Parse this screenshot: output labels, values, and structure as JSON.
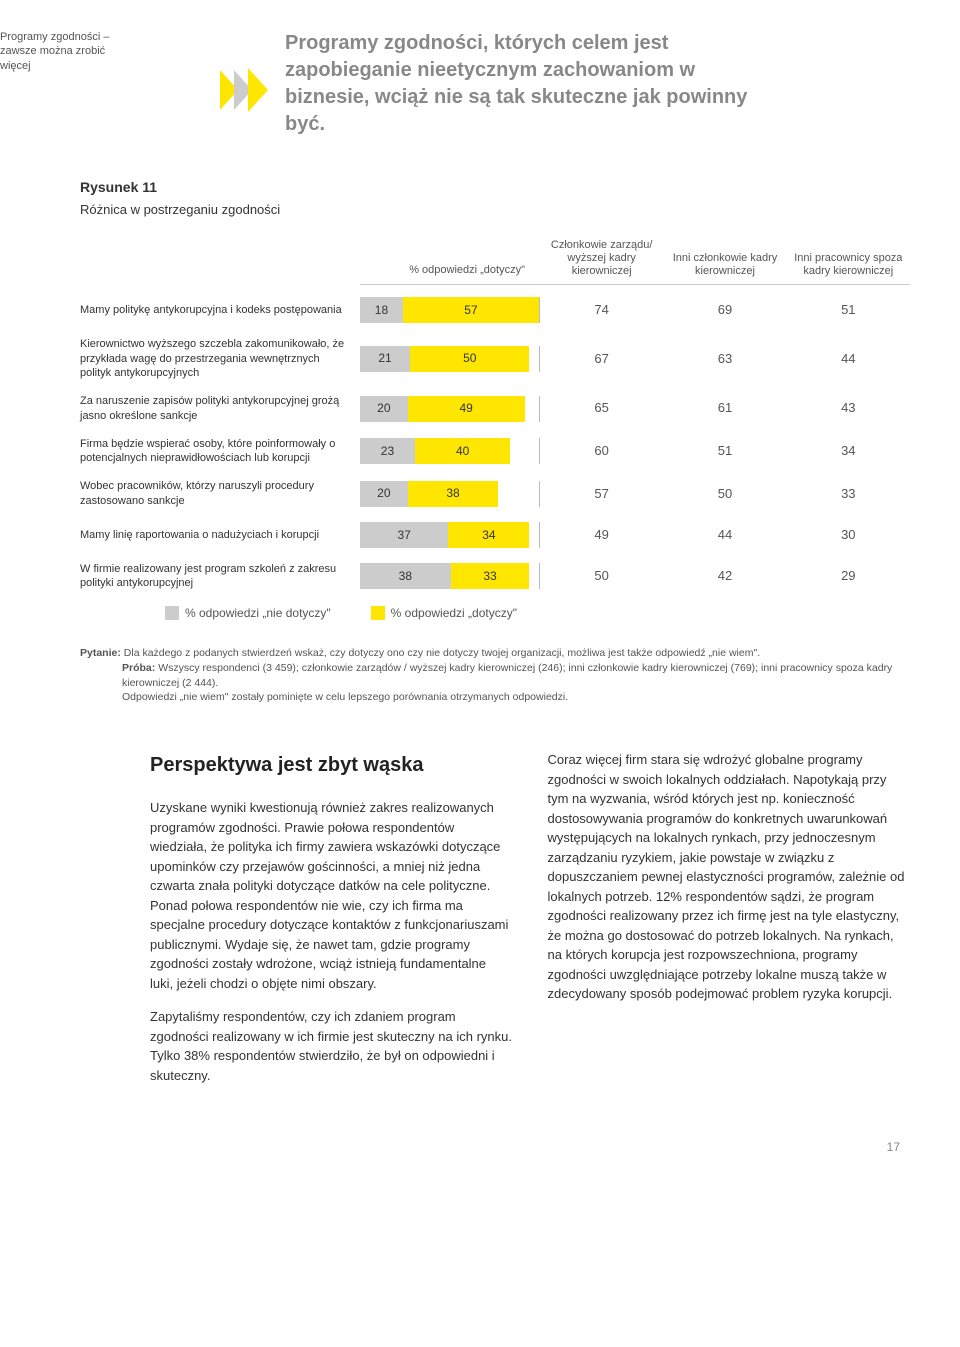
{
  "sidebar_title": "Programy zgodności – zawsze można zrobić więcej",
  "callout": "Programy zgodności, których celem jest zapobieganie nieetycznym zachowaniom w biznesie, wciąż nie są tak skuteczne jak powinny być.",
  "figure": {
    "number": "Rysunek 11",
    "title": "Różnica w postrzeganiu zgodności",
    "header_overall": "% odpowiedzi „dotyczy\"",
    "header_cols": [
      "Członkowie zarządu/ wyższej kadry kierowniczej",
      "Inni członkowie kadry kierowniczej",
      "Inni pracownicy spoza kadry kierowniczej"
    ],
    "bar_max": 75,
    "colors": {
      "grey": "#cccccc",
      "yellow": "#ffe600",
      "text": "#333333",
      "border": "#bbbbbb"
    },
    "rows": [
      {
        "label": "Mamy politykę antykorupcyjna i kodeks postępowania",
        "nie": 18,
        "tak": 57,
        "cols": [
          74,
          69,
          51
        ]
      },
      {
        "label": "Kierownictwo wyższego szczebla zakomunikowało, że przykłada wagę do przestrzegania wewnętrznych polityk antykorupcyjnych",
        "nie": 21,
        "tak": 50,
        "cols": [
          67,
          63,
          44
        ]
      },
      {
        "label": "Za naruszenie zapisów polityki antykorupcyjnej grożą jasno określone sankcje",
        "nie": 20,
        "tak": 49,
        "cols": [
          65,
          61,
          43
        ]
      },
      {
        "label": "Firma będzie wspierać osoby, które poinformowały o potencjalnych nieprawidłowościach lub korupcji",
        "nie": 23,
        "tak": 40,
        "cols": [
          60,
          51,
          34
        ]
      },
      {
        "label": "Wobec pracowników, którzy naruszyli procedury zastosowano sankcje",
        "nie": 20,
        "tak": 38,
        "cols": [
          57,
          50,
          33
        ]
      },
      {
        "label": "Mamy linię raportowania o nadużyciach i korupcji",
        "nie": 37,
        "tak": 34,
        "cols": [
          49,
          44,
          30
        ]
      },
      {
        "label": "W firmie realizowany jest program szkoleń z zakresu polityki antykorupcyjnej",
        "nie": 38,
        "tak": 33,
        "cols": [
          50,
          42,
          29
        ]
      }
    ],
    "legend": {
      "nie": "% odpowiedzi „nie dotyczy\"",
      "tak": "% odpowiedzi „dotyczy\""
    },
    "footnote": {
      "lead_q": "Pytanie:",
      "q": "Dla każdego z podanych stwierdzeń wskaż, czy dotyczy ono czy nie dotyczy twojej organizacji, możliwa jest także odpowiedź „nie wiem\".",
      "lead_p": "Próba:",
      "p": "Wszyscy respondenci (3 459); członkowie zarządów / wyższej kadry kierowniczej (246); inni członkowie kadry kierowniczej (769); inni pracownicy spoza kadry kierowniczej (2 444).",
      "note": "Odpowiedzi „nie wiem\" zostały pominięte w celu lepszego porównania otrzymanych odpowiedzi."
    }
  },
  "body": {
    "left": {
      "heading": "Perspektywa jest zbyt wąska",
      "p1": "Uzyskane wyniki kwestionują również zakres realizowanych programów zgodności. Prawie połowa respondentów wiedziała, że polityka ich firmy zawiera wskazówki dotyczące upominków czy przejawów gościnności, a mniej niż jedna czwarta znała polityki dotyczące datków na cele polityczne. Ponad połowa respondentów nie wie, czy ich firma ma specjalne procedury dotyczące kontaktów z funkcjonariuszami publicznymi. Wydaje się, że nawet tam, gdzie programy zgodności zostały wdrożone, wciąż istnieją fundamentalne luki, jeżeli chodzi o objęte nimi obszary.",
      "p2": "Zapytaliśmy respondentów, czy ich zdaniem program zgodności realizowany w ich firmie jest skuteczny na ich rynku. Tylko 38% respondentów stwierdziło, że był on odpowiedni i skuteczny."
    },
    "right": {
      "p1": "Coraz więcej firm stara się wdrożyć globalne programy zgodności w swoich lokalnych oddziałach. Napotykają przy tym na wyzwania, wśród których jest np. konieczność dostosowywania programów do konkretnych uwarunkowań występujących na lokalnych rynkach, przy jednoczesnym zarządzaniu ryzykiem, jakie powstaje w związku z dopuszczaniem pewnej elastyczności programów, zależnie od lokalnych potrzeb. 12% respondentów sądzi, że program zgodności realizowany przez ich firmę jest na tyle elastyczny, że można go dostosować do potrzeb lokalnych. Na rynkach, na których korupcja jest rozpowszechniona, programy zgodności uwzględniające potrzeby lokalne muszą także w zdecydowany sposób podejmować problem ryzyka korupcji."
    }
  },
  "page_number": "17"
}
